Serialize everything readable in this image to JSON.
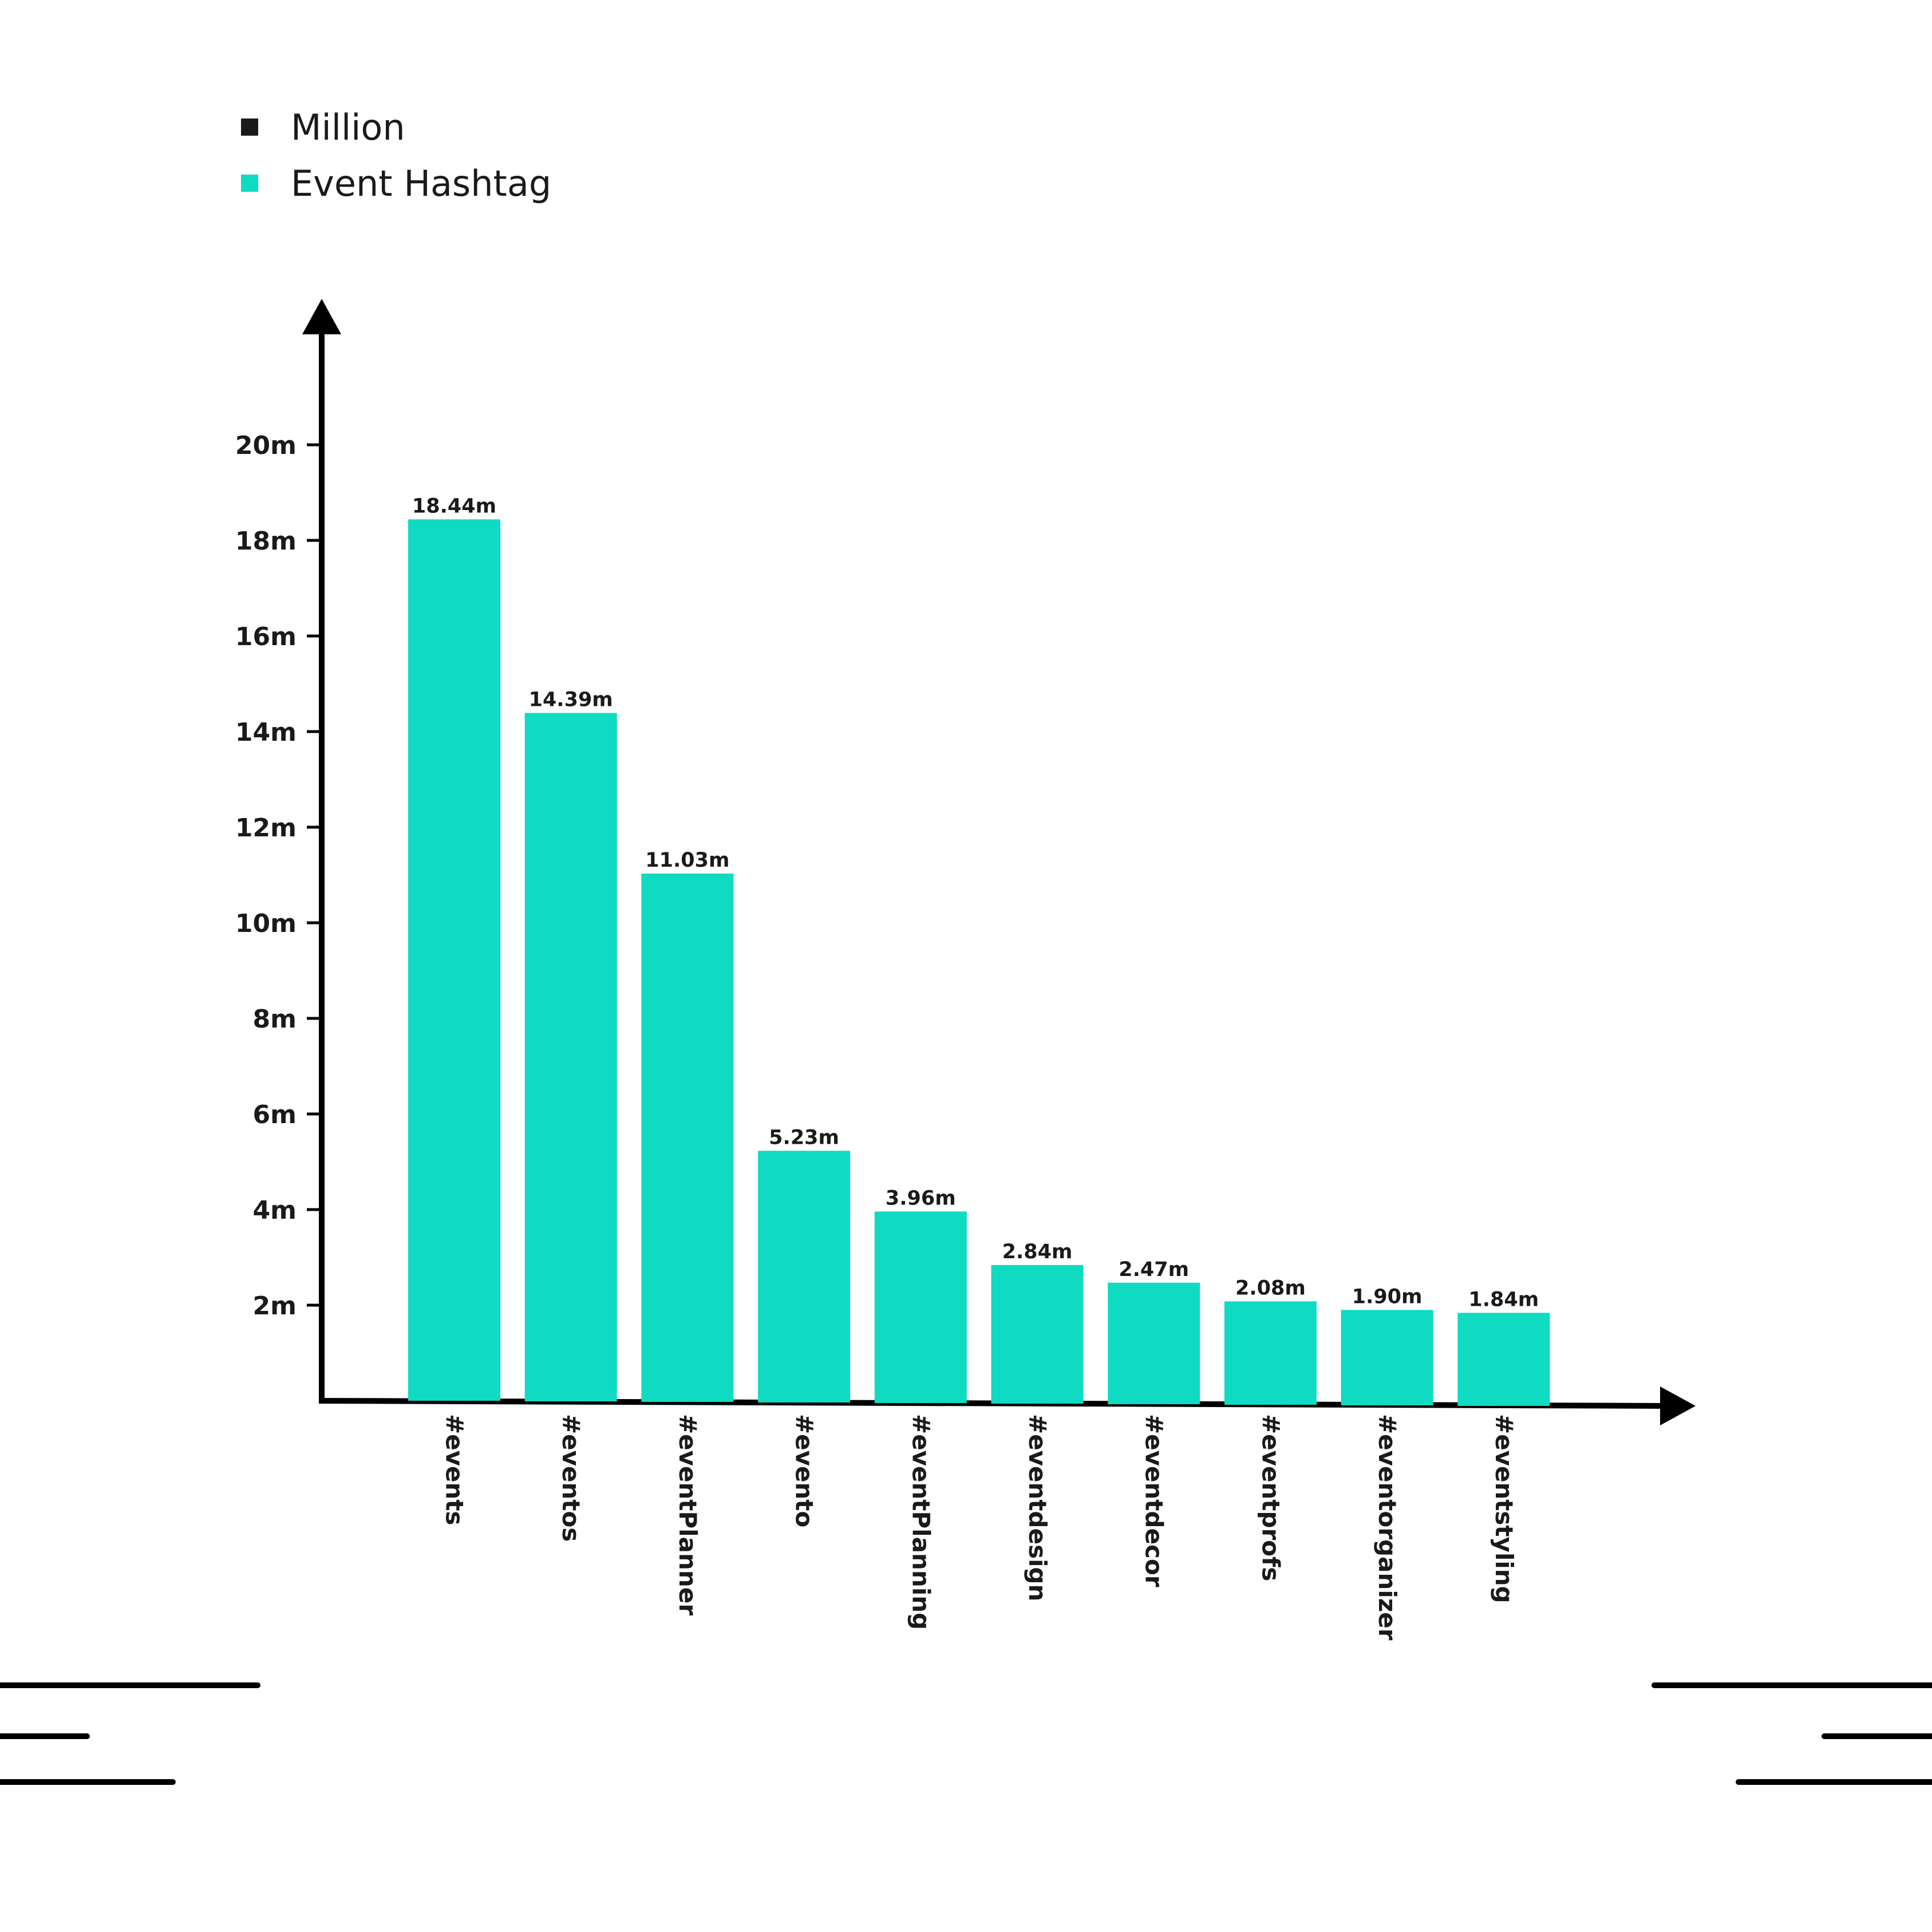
{
  "legend": {
    "items": [
      {
        "label": "Million",
        "color": "#1a1a1a"
      },
      {
        "label": "Event Hashtag",
        "color": "#0edbc2"
      }
    ]
  },
  "chart_data": {
    "type": "bar",
    "title": "",
    "xlabel": "",
    "ylabel": "",
    "ylim": [
      0,
      20
    ],
    "y_ticks": [
      2,
      4,
      6,
      8,
      10,
      12,
      14,
      16,
      18,
      20
    ],
    "y_tick_labels": [
      "2m",
      "4m",
      "6m",
      "8m",
      "10m",
      "12m",
      "14m",
      "16m",
      "18m",
      "20m"
    ],
    "grid": false,
    "legend_position": "top-left",
    "bar_color": "#0edbc2",
    "categories": [
      "#events",
      "#eventos",
      "#eventPlanner",
      "#evento",
      "#eventPlanning",
      "#eventdesign",
      "#eventdecor",
      "#eventprofs",
      "#eventorganizer",
      "#eventstyling"
    ],
    "values": [
      18.44,
      14.39,
      11.03,
      5.23,
      3.96,
      2.84,
      2.47,
      2.08,
      1.9,
      1.84
    ],
    "value_labels": [
      "18.44m",
      "14.39m",
      "11.03m",
      "5.23m",
      "3.96m",
      "2.84m",
      "2.47m",
      "2.08m",
      "1.90m",
      "1.84m"
    ]
  }
}
